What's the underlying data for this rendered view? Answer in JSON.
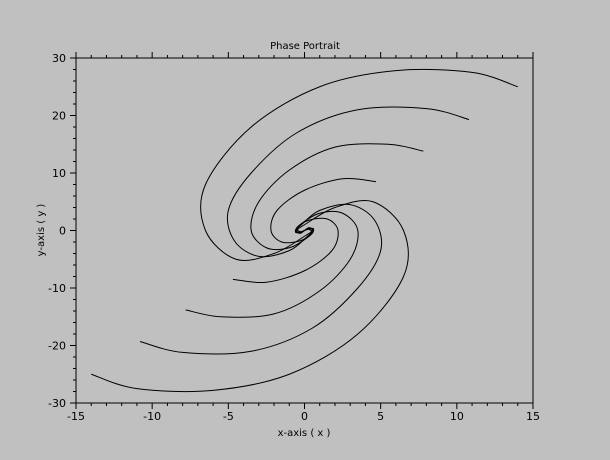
{
  "chart_data": {
    "type": "line",
    "title": "Phase Portrait",
    "xlabel": "x-axis ( x )",
    "ylabel": "y-axis ( y )",
    "xlim": [
      -15,
      15
    ],
    "ylim": [
      -30,
      30
    ],
    "xticks": [
      -15,
      -10,
      -5,
      0,
      5,
      10,
      15
    ],
    "yticks": [
      -30,
      -20,
      -10,
      0,
      10,
      20,
      30
    ],
    "grid": false,
    "background": "#c0c0c0",
    "line_color": "#000000",
    "series": [
      {
        "x": [
          14.0,
          11.0,
          6.0,
          1.0,
          -3.5,
          -6.5,
          -6.5,
          -4.5,
          -2.0,
          0.0,
          0.5,
          0.3,
          0.0
        ],
        "y": [
          25.0,
          27.5,
          27.8,
          25.0,
          18.0,
          8.0,
          0.0,
          -5.0,
          -4.0,
          -1.0,
          0.0,
          0.5,
          0.0
        ]
      },
      {
        "x": [
          10.8,
          8.0,
          3.5,
          -0.5,
          -3.5,
          -5.0,
          -4.6,
          -3.0,
          -1.0,
          0.2,
          0.6,
          0.3,
          0.0
        ],
        "y": [
          19.3,
          21.2,
          21.0,
          17.0,
          10.0,
          3.5,
          -1.8,
          -4.5,
          -3.5,
          -1.0,
          0.2,
          0.4,
          0.0
        ]
      },
      {
        "x": [
          7.8,
          5.5,
          2.0,
          -1.0,
          -3.0,
          -3.5,
          -2.5,
          -1.0,
          0.2,
          0.6,
          0.3,
          0.0
        ],
        "y": [
          13.8,
          15.0,
          14.5,
          10.5,
          5.0,
          0.0,
          -3.0,
          -3.0,
          -1.2,
          0.0,
          0.3,
          0.0
        ]
      },
      {
        "x": [
          4.7,
          2.5,
          0.0,
          -1.8,
          -2.2,
          -1.5,
          -0.3,
          0.5,
          0.3,
          0.0
        ],
        "y": [
          8.5,
          9.0,
          7.0,
          3.5,
          0.0,
          -2.0,
          -1.8,
          -0.5,
          0.2,
          0.0
        ]
      },
      {
        "x": [
          -14.0,
          -11.0,
          -6.0,
          -1.0,
          3.5,
          6.5,
          6.5,
          4.5,
          2.0,
          0.0,
          -0.5,
          -0.3,
          0.0
        ],
        "y": [
          -25.0,
          -27.5,
          -27.8,
          -25.0,
          -18.0,
          -8.0,
          0.0,
          5.0,
          4.0,
          1.0,
          0.0,
          -0.5,
          0.0
        ]
      },
      {
        "x": [
          -10.8,
          -8.0,
          -3.5,
          0.5,
          3.5,
          5.0,
          4.6,
          3.0,
          1.0,
          -0.2,
          -0.6,
          -0.3,
          0.0
        ],
        "y": [
          -19.3,
          -21.2,
          -21.0,
          -17.0,
          -10.0,
          -3.5,
          1.8,
          4.5,
          3.5,
          1.0,
          -0.2,
          -0.4,
          0.0
        ]
      },
      {
        "x": [
          -7.8,
          -5.5,
          -2.0,
          1.0,
          3.0,
          3.5,
          2.5,
          1.0,
          -0.2,
          -0.6,
          -0.3,
          0.0
        ],
        "y": [
          -13.8,
          -15.0,
          -14.5,
          -10.5,
          -5.0,
          0.0,
          3.0,
          3.0,
          1.2,
          0.0,
          -0.3,
          0.0
        ]
      },
      {
        "x": [
          -4.7,
          -2.5,
          0.0,
          1.8,
          2.2,
          1.5,
          0.3,
          -0.5,
          -0.3,
          0.0
        ],
        "y": [
          -8.5,
          -9.0,
          -7.0,
          -3.5,
          0.0,
          2.0,
          1.8,
          0.5,
          -0.2,
          0.0
        ]
      }
    ]
  }
}
